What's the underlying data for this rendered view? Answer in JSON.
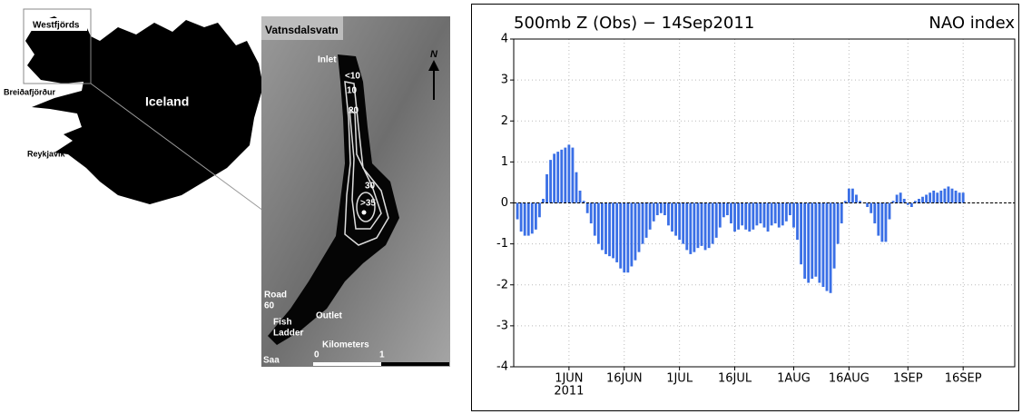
{
  "map": {
    "westfjords": "Westfjörds",
    "breidafjordur": "Breiðafjörður",
    "iceland": "Iceland",
    "reykjavik": "Reykjavík"
  },
  "lake": {
    "title": "Vatnsdalsvatn",
    "inlet": "Inlet",
    "depth_labels": [
      "<10",
      "10",
      "20",
      "30",
      ">35"
    ],
    "north": "N",
    "road": [
      "Road",
      "60"
    ],
    "fish_ladder": [
      "Fish",
      "Ladder"
    ],
    "outlet": "Outlet",
    "kilometers": "Kilometers",
    "scale": [
      "0",
      "1"
    ],
    "river": "Saa"
  },
  "chart_data": {
    "type": "bar",
    "title": "500mb Z (Obs) − 14Sep2011",
    "subtitle": "NAO index",
    "color": "#3a6fe6",
    "grid": true,
    "x": [
      "2011-05-18",
      "2011-05-19",
      "2011-05-20",
      "2011-05-21",
      "2011-05-22",
      "2011-05-23",
      "2011-05-24",
      "2011-05-25",
      "2011-05-26",
      "2011-05-27",
      "2011-05-28",
      "2011-05-29",
      "2011-05-30",
      "2011-05-31",
      "2011-06-01",
      "2011-06-02",
      "2011-06-03",
      "2011-06-04",
      "2011-06-05",
      "2011-06-06",
      "2011-06-07",
      "2011-06-08",
      "2011-06-09",
      "2011-06-10",
      "2011-06-11",
      "2011-06-12",
      "2011-06-13",
      "2011-06-14",
      "2011-06-15",
      "2011-06-16",
      "2011-06-17",
      "2011-06-18",
      "2011-06-19",
      "2011-06-20",
      "2011-06-21",
      "2011-06-22",
      "2011-06-23",
      "2011-06-24",
      "2011-06-25",
      "2011-06-26",
      "2011-06-27",
      "2011-06-28",
      "2011-06-29",
      "2011-06-30",
      "2011-07-01",
      "2011-07-02",
      "2011-07-03",
      "2011-07-04",
      "2011-07-05",
      "2011-07-06",
      "2011-07-07",
      "2011-07-08",
      "2011-07-09",
      "2011-07-10",
      "2011-07-11",
      "2011-07-12",
      "2011-07-13",
      "2011-07-14",
      "2011-07-15",
      "2011-07-16",
      "2011-07-17",
      "2011-07-18",
      "2011-07-19",
      "2011-07-20",
      "2011-07-21",
      "2011-07-22",
      "2011-07-23",
      "2011-07-24",
      "2011-07-25",
      "2011-07-26",
      "2011-07-27",
      "2011-07-28",
      "2011-07-29",
      "2011-07-30",
      "2011-07-31",
      "2011-08-01",
      "2011-08-02",
      "2011-08-03",
      "2011-08-04",
      "2011-08-05",
      "2011-08-06",
      "2011-08-07",
      "2011-08-08",
      "2011-08-09",
      "2011-08-10",
      "2011-08-11",
      "2011-08-12",
      "2011-08-13",
      "2011-08-14",
      "2011-08-15",
      "2011-08-16",
      "2011-08-17",
      "2011-08-18",
      "2011-08-19",
      "2011-08-20",
      "2011-08-21",
      "2011-08-22",
      "2011-08-23",
      "2011-08-24",
      "2011-08-25",
      "2011-08-26",
      "2011-08-27",
      "2011-08-28",
      "2011-08-29",
      "2011-08-30",
      "2011-08-31",
      "2011-09-01",
      "2011-09-02",
      "2011-09-03",
      "2011-09-04",
      "2011-09-05",
      "2011-09-06",
      "2011-09-07",
      "2011-09-08",
      "2011-09-09",
      "2011-09-10",
      "2011-09-11",
      "2011-09-12",
      "2011-09-13",
      "2011-09-14",
      "2011-09-15",
      "2011-09-16"
    ],
    "values": [
      -0.4,
      -0.7,
      -0.8,
      -0.8,
      -0.75,
      -0.65,
      -0.35,
      0.1,
      0.7,
      1.05,
      1.2,
      1.25,
      1.3,
      1.35,
      1.42,
      1.35,
      0.75,
      0.3,
      0.05,
      -0.25,
      -0.5,
      -0.8,
      -1.0,
      -1.15,
      -1.25,
      -1.3,
      -1.35,
      -1.45,
      -1.6,
      -1.7,
      -1.7,
      -1.55,
      -1.4,
      -1.2,
      -1.0,
      -0.85,
      -0.65,
      -0.45,
      -0.3,
      -0.25,
      -0.3,
      -0.55,
      -0.7,
      -0.8,
      -0.9,
      -1.0,
      -1.15,
      -1.25,
      -1.2,
      -1.1,
      -1.05,
      -1.15,
      -1.1,
      -1.0,
      -0.85,
      -0.6,
      -0.35,
      -0.3,
      -0.5,
      -0.7,
      -0.65,
      -0.55,
      -0.65,
      -0.7,
      -0.65,
      -0.55,
      -0.5,
      -0.6,
      -0.7,
      -0.55,
      -0.5,
      -0.6,
      -0.55,
      -0.45,
      -0.3,
      -0.6,
      -0.9,
      -1.5,
      -1.85,
      -1.95,
      -1.85,
      -1.8,
      -1.95,
      -2.05,
      -2.15,
      -2.2,
      -1.6,
      -1.0,
      -0.5,
      0.05,
      0.35,
      0.35,
      0.2,
      0.05,
      0.0,
      -0.1,
      -0.25,
      -0.5,
      -0.8,
      -0.95,
      -0.95,
      -0.4,
      0.05,
      0.2,
      0.25,
      0.1,
      -0.05,
      -0.1,
      0.05,
      0.1,
      0.15,
      0.2,
      0.25,
      0.3,
      0.25,
      0.3,
      0.35,
      0.4,
      0.35,
      0.3,
      0.25,
      0.25
    ],
    "xlim": [
      "2011-05-17",
      "2011-09-30"
    ],
    "xticks": [
      {
        "value": "2011-06-01",
        "label": "1JUN"
      },
      {
        "value": "2011-06-16",
        "label": "16JUN"
      },
      {
        "value": "2011-07-01",
        "label": "1JUL"
      },
      {
        "value": "2011-07-16",
        "label": "16JUL"
      },
      {
        "value": "2011-08-01",
        "label": "1AUG"
      },
      {
        "value": "2011-08-16",
        "label": "16AUG"
      },
      {
        "value": "2011-09-01",
        "label": "1SEP"
      },
      {
        "value": "2011-09-16",
        "label": "16SEP"
      }
    ],
    "x_year_label": "2011",
    "ylim": [
      -4,
      4
    ],
    "yticks": [
      -4,
      -3,
      -2,
      -1,
      0,
      1,
      2,
      3,
      4
    ]
  }
}
